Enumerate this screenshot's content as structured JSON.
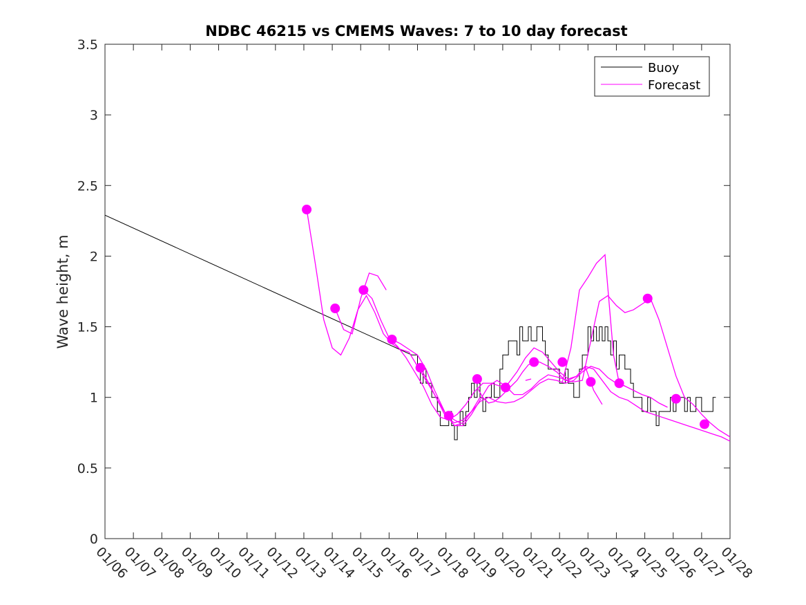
{
  "chart_data": {
    "type": "line",
    "title": "NDBC 46215 vs CMEMS Waves: 7 to 10 day forecast",
    "xlabel": "",
    "ylabel": "Wave height, m",
    "xlim": [
      0,
      22
    ],
    "ylim": [
      0,
      3.5
    ],
    "xticks": [
      0,
      1,
      2,
      3,
      4,
      5,
      6,
      7,
      8,
      9,
      10,
      11,
      12,
      13,
      14,
      15,
      16,
      17,
      18,
      19,
      20,
      21,
      22
    ],
    "xtick_labels": [
      "01/06",
      "01/07",
      "01/08",
      "01/09",
      "01/10",
      "01/11",
      "01/12",
      "01/13",
      "01/14",
      "01/15",
      "01/16",
      "01/17",
      "01/18",
      "01/19",
      "01/20",
      "01/21",
      "01/22",
      "01/23",
      "01/24",
      "01/25",
      "01/26",
      "01/27",
      "01/28"
    ],
    "yticks": [
      0,
      0.5,
      1,
      1.5,
      2,
      2.5,
      3,
      3.5
    ],
    "ytick_labels": [
      "0",
      "0.5",
      "1",
      "1.5",
      "2",
      "2.5",
      "3",
      "3.5"
    ],
    "grid": false,
    "legend": {
      "position": "top-right",
      "entries": [
        {
          "label": "Buoy",
          "color": "#000000"
        },
        {
          "label": "Forecast",
          "color": "#ff00ff"
        }
      ]
    },
    "series": [
      {
        "name": "Buoy",
        "color": "#000000",
        "x": [
          0,
          10.8,
          11.0,
          11.1,
          11.2,
          11.3,
          11.4,
          11.5,
          11.6,
          11.7,
          11.8,
          11.9,
          12.0,
          12.1,
          12.2,
          12.3,
          12.4,
          12.5,
          12.6,
          12.7,
          12.8,
          12.9,
          13.0,
          13.1,
          13.2,
          13.3,
          13.4,
          13.5,
          13.6,
          13.7,
          13.8,
          13.9,
          14.0,
          14.1,
          14.2,
          14.3,
          14.4,
          14.5,
          14.6,
          14.7,
          14.8,
          14.9,
          15.0,
          15.1,
          15.2,
          15.3,
          15.4,
          15.5,
          15.6,
          15.7,
          15.8,
          15.9,
          16.0,
          16.1,
          16.2,
          16.3,
          16.4,
          16.5,
          16.6,
          16.7,
          16.8,
          16.9,
          17.0,
          17.1,
          17.2,
          17.3,
          17.4,
          17.5,
          17.6,
          17.7,
          17.8,
          17.9,
          18.0,
          18.1,
          18.2,
          18.3,
          18.4,
          18.5,
          18.6,
          18.7,
          18.8,
          18.9,
          19.0,
          19.1,
          19.2,
          19.3,
          19.4,
          19.5,
          19.6,
          19.7,
          19.8,
          19.9,
          20.0,
          20.1,
          20.2,
          20.3,
          20.4,
          20.5,
          20.6,
          20.7,
          20.8,
          20.9,
          21.0,
          21.1,
          21.2,
          21.3,
          21.4,
          21.5
        ],
        "y": [
          2.29,
          1.3,
          1.2,
          1.1,
          1.2,
          1.1,
          1.1,
          1.0,
          1.0,
          0.9,
          0.8,
          0.8,
          0.8,
          0.9,
          0.8,
          0.7,
          0.8,
          0.9,
          0.8,
          0.9,
          1.0,
          1.1,
          1.0,
          1.1,
          1.0,
          0.9,
          1.0,
          1.0,
          1.1,
          1.0,
          1.0,
          1.2,
          1.3,
          1.3,
          1.4,
          1.4,
          1.4,
          1.3,
          1.5,
          1.4,
          1.4,
          1.5,
          1.4,
          1.4,
          1.5,
          1.5,
          1.4,
          1.3,
          1.2,
          1.2,
          1.2,
          1.2,
          1.1,
          1.1,
          1.2,
          1.1,
          1.1,
          1.0,
          1.0,
          1.2,
          1.3,
          1.3,
          1.5,
          1.4,
          1.5,
          1.4,
          1.5,
          1.4,
          1.5,
          1.4,
          1.3,
          1.4,
          1.2,
          1.3,
          1.3,
          1.2,
          1.2,
          1.1,
          1.0,
          1.0,
          1.0,
          0.9,
          0.9,
          1.0,
          0.9,
          0.9,
          0.8,
          0.9,
          0.9,
          0.9,
          0.9,
          1.0,
          0.9,
          1.0,
          1.0,
          1.0,
          0.9,
          1.0,
          0.9,
          0.9,
          1.0,
          1.0,
          0.9,
          0.9,
          0.9,
          0.9,
          1.0,
          1.0
        ]
      },
      {
        "name": "Forecast",
        "color": "#ff00ff",
        "lines": [
          {
            "x": [
              7.1,
              7.4,
              7.7,
              8.0,
              8.3,
              8.6,
              8.9,
              9.2,
              9.5,
              9.8,
              10.1,
              10.4,
              10.7,
              11.0,
              11.3,
              11.6,
              12.0,
              12.3,
              12.6,
              12.9,
              13.2
            ],
            "y": [
              2.33,
              1.95,
              1.55,
              1.35,
              1.3,
              1.42,
              1.62,
              1.72,
              1.6,
              1.45,
              1.38,
              1.34,
              1.32,
              1.22,
              1.12,
              1.02,
              0.88,
              0.8,
              0.82,
              0.9,
              1.0
            ]
          },
          {
            "x": [
              8.1,
              8.4,
              8.7,
              9.0,
              9.3,
              9.6,
              9.9
            ],
            "y": [
              1.63,
              1.48,
              1.45,
              1.7,
              1.88,
              1.86,
              1.76
            ]
          },
          {
            "x": [
              9.1,
              9.4,
              9.7,
              10.0,
              10.3,
              10.6,
              10.9,
              11.2,
              11.5,
              11.8,
              12.1,
              12.4,
              12.7,
              13.0,
              13.3,
              13.6,
              13.9,
              14.2,
              14.5,
              14.8,
              15.1,
              15.4,
              15.7,
              16.0,
              16.3,
              16.6,
              16.9,
              17.2,
              17.5
            ],
            "y": [
              1.76,
              1.7,
              1.55,
              1.42,
              1.36,
              1.28,
              1.18,
              1.08,
              0.95,
              0.86,
              0.84,
              0.88,
              0.95,
              1.04,
              1.1,
              1.1,
              1.08,
              1.1,
              1.18,
              1.28,
              1.35,
              1.32,
              1.25,
              1.18,
              1.13,
              1.15,
              1.22,
              1.05,
              0.95
            ]
          },
          {
            "x": [
              10.1,
              10.4,
              10.7,
              11.0,
              11.3,
              11.6,
              12.0,
              12.3,
              12.6,
              12.9,
              13.2,
              13.5,
              13.8,
              14.1,
              14.4,
              14.7,
              15.0,
              15.3,
              15.6,
              16.0,
              16.3,
              16.6,
              16.9,
              17.2,
              17.5,
              17.8,
              18.1,
              18.4,
              18.7,
              19.0,
              19.3,
              19.6,
              19.9,
              20.2,
              20.5,
              20.8,
              21.1,
              21.4,
              21.7,
              22.0
            ],
            "y": [
              1.41,
              1.38,
              1.34,
              1.3,
              1.2,
              1.05,
              0.88,
              0.8,
              0.8,
              0.88,
              0.98,
              1.08,
              1.12,
              1.08,
              1.02,
              1.02,
              1.06,
              1.12,
              1.16,
              1.14,
              1.12,
              1.15,
              1.22,
              1.2,
              1.12,
              1.04,
              1.0,
              0.98,
              0.94,
              0.9,
              0.88,
              0.86,
              0.84,
              0.82,
              0.8,
              0.78,
              0.76,
              0.74,
              0.72,
              0.69
            ]
          },
          {
            "x": [
              11.1,
              11.4,
              11.7,
              12.0,
              12.3,
              12.6,
              12.9,
              13.2,
              13.5,
              13.8,
              14.1,
              14.4,
              14.7,
              15.0,
              15.3,
              15.6,
              15.9,
              16.2,
              16.5,
              16.8,
              17.1,
              17.4,
              17.7,
              18.0,
              18.3,
              18.6,
              18.9,
              19.2,
              19.5,
              19.8
            ],
            "y": [
              1.21,
              1.1,
              0.98,
              0.86,
              0.82,
              0.84,
              0.9,
              0.97,
              1.0,
              0.97,
              0.96,
              0.97,
              1.0,
              1.05,
              1.1,
              1.13,
              1.12,
              1.1,
              1.12,
              1.18,
              1.22,
              1.2,
              1.14,
              1.1,
              1.08,
              1.05,
              1.02,
              1.0,
              0.96,
              0.93
            ]
          },
          {
            "x": [
              12.1,
              12.3,
              12.5
            ],
            "y": [
              0.87,
              0.84,
              0.82
            ]
          },
          {
            "x": [
              13.1,
              13.3,
              13.5,
              13.7,
              13.9,
              14.1,
              14.3,
              14.5,
              14.7,
              14.9,
              15.1,
              15.3,
              15.6,
              15.9,
              16.2,
              16.5,
              16.8,
              17.1,
              17.4,
              17.7,
              18.0,
              18.3,
              18.6,
              18.9,
              19.2,
              19.5,
              19.8,
              20.1,
              20.4,
              20.7,
              21.0,
              21.3,
              21.6,
              22.0
            ],
            "y": [
              1.07,
              1.0,
              0.96,
              0.97,
              1.0,
              1.04,
              1.08,
              1.12,
              1.18,
              1.23,
              1.25,
              1.25,
              1.22,
              1.18,
              1.12,
              1.11,
              1.12,
              1.4,
              1.68,
              1.72,
              1.65,
              1.6,
              1.62,
              1.66,
              1.7,
              1.55,
              1.35,
              1.15,
              1.0,
              0.95,
              0.88,
              0.82,
              0.77,
              0.72
            ]
          },
          {
            "x": [
              14.8,
              15.0
            ],
            "y": [
              1.12,
              1.13
            ]
          },
          {
            "x": [
              16.1,
              16.4,
              16.7,
              17.0,
              17.3,
              17.6,
              17.9,
              18.1,
              18.3
            ],
            "y": [
              1.11,
              1.35,
              1.76,
              1.85,
              1.95,
              2.01,
              1.3,
              1.1,
              1.08
            ]
          }
        ],
        "markers": {
          "x": [
            7.1,
            8.1,
            9.1,
            10.1,
            11.1,
            12.1,
            13.1,
            14.1,
            15.1,
            16.1,
            17.1,
            18.1,
            19.1,
            20.1,
            21.1
          ],
          "y": [
            2.33,
            1.63,
            1.76,
            1.41,
            1.21,
            0.87,
            1.13,
            1.07,
            1.25,
            1.25,
            1.11,
            1.1,
            1.7,
            0.99,
            0.81
          ]
        }
      }
    ]
  }
}
